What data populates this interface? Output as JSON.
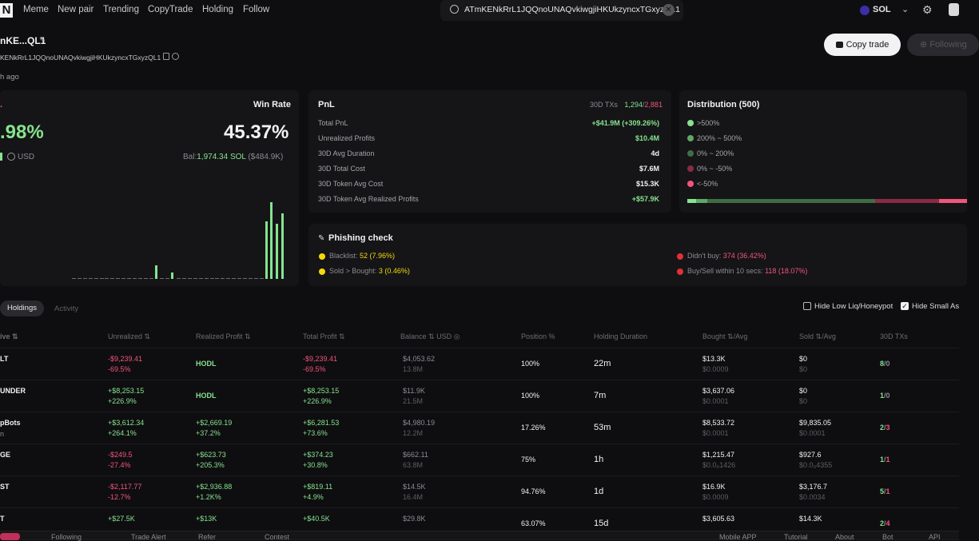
{
  "nav": {
    "logo": "N",
    "items": [
      "Meme",
      "New pair",
      "Trending",
      "CopyTrade",
      "Holding",
      "Follow"
    ],
    "search_value": "ATmKENkRrL1JQQnoUNAQvkiwgjiHKUkzyncxTGxyzQL1",
    "chain": "SOL"
  },
  "wallet": {
    "name": "nKE...QL1",
    "address": "KENkRrL1JQQnoUNAQvkiwgjiHKUkzyncxTGxyzQL1",
    "ago": "h ago",
    "copy_trade_label": "Copy trade",
    "following_label": "Following"
  },
  "summary": {
    "title_stub": ".",
    "win_rate_label": "Win Rate",
    "pnl_pct": ".98%",
    "win_rate": "45.37%",
    "usd_label": "USD",
    "balance": "Bal:1,974.34 SOL ($484.9K)",
    "bal_prefix": "Bal:",
    "bal_sol": "1,974.34 SOL",
    "bal_usd": " ($484.9K)",
    "bar_levels": [
      0,
      0,
      0,
      0,
      0,
      0,
      0,
      0,
      0,
      0,
      0,
      0,
      0,
      0,
      0,
      0.18,
      0,
      0,
      0.08,
      0,
      0,
      0,
      0,
      0,
      0,
      0,
      0,
      0,
      0,
      0,
      0,
      0,
      0,
      0,
      0,
      0.75,
      1.0,
      0.72,
      0.85
    ]
  },
  "pnl": {
    "title": "PnL",
    "txs_label": "30D TXs",
    "txs_buy": "1,294",
    "txs_sell": "2,881",
    "rows": [
      {
        "label": "Total PnL",
        "value": "+$41.9M (+309.26%)",
        "color": "green"
      },
      {
        "label": "Unrealized Profits",
        "value": "$10.4M",
        "color": "green"
      },
      {
        "label": "30D Avg Duration",
        "value": "4d",
        "color": "white"
      },
      {
        "label": "30D Total Cost",
        "value": "$7.6M",
        "color": "white"
      },
      {
        "label": "30D Token Avg Cost",
        "value": "$15.3K",
        "color": "white"
      },
      {
        "label": "30D Token Avg Realized Profits",
        "value": "+$57.9K",
        "color": "green"
      }
    ]
  },
  "distribution": {
    "title": "Distribution (500)",
    "items": [
      {
        "label": ">500%",
        "color": "#86e38f"
      },
      {
        "label": "200% ~ 500%",
        "color": "#5fa866"
      },
      {
        "label": "0% ~ 200%",
        "color": "#3f6e45"
      },
      {
        "label": "0% ~ -50%",
        "color": "#8a2a44"
      },
      {
        "label": "<-50%",
        "color": "#f2557a"
      }
    ],
    "bar_segments": [
      {
        "color": "#86e38f",
        "fraction": 0.03
      },
      {
        "color": "#5fa866",
        "fraction": 0.04
      },
      {
        "color": "#3f6e45",
        "fraction": 0.6
      },
      {
        "color": "#8a2a44",
        "fraction": 0.23
      },
      {
        "color": "#f2557a",
        "fraction": 0.1
      }
    ]
  },
  "phishing": {
    "title": "Phishing check",
    "blacklist_label": "Blacklist:",
    "blacklist_value": "52 (7.96%)",
    "sold_label": "Sold > Bought:",
    "sold_value": "3 (0.46%)",
    "didnt_buy_label": "Didn't buy:",
    "didnt_buy_value": "374 (36.42%)",
    "buysell_label": "Buy/Sell within 10 secs:",
    "buysell_value": "118 (18.07%)"
  },
  "tabs": {
    "holdings": "Holdings",
    "activity": "Activity",
    "hide_low_liq": "Hide Low Liq/Honeypot",
    "hide_small": "Hide Small As"
  },
  "table": {
    "headers": {
      "token": "ive",
      "unrealized": "Unrealized",
      "realized": "Realized Profit",
      "total": "Total Profit",
      "balance": "Balance",
      "usd": "USD",
      "position": "Position %",
      "duration": "Holding Duration",
      "bought": "Bought",
      "bought_avg": "/Avg",
      "sold": "Sold",
      "sold_avg": "/Avg",
      "txs": "30D TXs"
    },
    "rows": [
      {
        "token": "LT",
        "sub": "",
        "unreal": "-$9,239.41",
        "unreal_pct": "-69.5%",
        "uc": "red",
        "realized": "HODL",
        "realized_pct": "",
        "rc": "green",
        "total": "-$9,239.41",
        "total_pct": "-69.5%",
        "tc": "red",
        "bal": "$4,053.62",
        "bal_sub": "13.8M",
        "pos": "100%",
        "dur": "22m",
        "bought": "$13.3K",
        "bought_avg": "$0.0009",
        "sold": "$0",
        "sold_avg": "$0",
        "tx_buy": "8",
        "tx_sell": "0"
      },
      {
        "token": "UNDER",
        "sub": "",
        "unreal": "+$8,253.15",
        "unreal_pct": "+226.9%",
        "uc": "green",
        "realized": "HODL",
        "realized_pct": "",
        "rc": "green",
        "total": "+$8,253.15",
        "total_pct": "+226.9%",
        "tc": "green",
        "bal": "$11.9K",
        "bal_sub": "21.5M",
        "pos": "100%",
        "dur": "7m",
        "bought": "$3,637.06",
        "bought_avg": "$0.0001",
        "sold": "$0",
        "sold_avg": "$0",
        "tx_buy": "1",
        "tx_sell": "0"
      },
      {
        "token": "pBots",
        "sub": "n",
        "unreal": "+$3,612.34",
        "unreal_pct": "+264.1%",
        "uc": "green",
        "realized": "+$2,669.19",
        "realized_pct": "+37.2%",
        "rc": "green",
        "total": "+$6,281.53",
        "total_pct": "+73.6%",
        "tc": "green",
        "bal": "$4,980.19",
        "bal_sub": "12.2M",
        "pos": "17.26%",
        "dur": "53m",
        "bought": "$8,533.72",
        "bought_avg": "$0.0001",
        "sold": "$9,835.05",
        "sold_avg": "$0.0001",
        "tx_buy": "2",
        "tx_sell": "3"
      },
      {
        "token": "GE",
        "sub": "",
        "unreal": "-$249.5",
        "unreal_pct": "-27.4%",
        "uc": "red",
        "realized": "+$623.73",
        "realized_pct": "+205.3%",
        "rc": "green",
        "total": "+$374.23",
        "total_pct": "+30.8%",
        "tc": "green",
        "bal": "$662.11",
        "bal_sub": "63.8M",
        "pos": "75%",
        "dur": "1h",
        "bought": "$1,215.47",
        "bought_avg": "$0.0₀1426",
        "sold": "$927.6",
        "sold_avg": "$0.0₀4355",
        "tx_buy": "1",
        "tx_sell": "1"
      },
      {
        "token": "ST",
        "sub": "",
        "unreal": "-$2,117.77",
        "unreal_pct": "-12.7%",
        "uc": "red",
        "realized": "+$2,936.88",
        "realized_pct": "+1.2K%",
        "rc": "green",
        "total": "+$819.11",
        "total_pct": "+4.9%",
        "tc": "green",
        "bal": "$14.5K",
        "bal_sub": "16.4M",
        "pos": "94.76%",
        "dur": "1d",
        "bought": "$16.9K",
        "bought_avg": "$0.0009",
        "sold": "$3,176.7",
        "sold_avg": "$0.0034",
        "tx_buy": "5",
        "tx_sell": "1"
      },
      {
        "token": "T",
        "sub": "",
        "unreal": "+$27.5K",
        "unreal_pct": "",
        "uc": "green",
        "realized": "+$13K",
        "realized_pct": "",
        "rc": "green",
        "total": "+$40.5K",
        "total_pct": "",
        "tc": "green",
        "bal": "$29.8K",
        "bal_sub": "",
        "pos": "63.07%",
        "dur": "15d",
        "bought": "$3,605.63",
        "bought_avg": "",
        "sold": "$14.3K",
        "sold_avg": "",
        "tx_buy": "2",
        "tx_sell": "4"
      }
    ]
  },
  "bottom": {
    "following": "Following",
    "trade_alert": "Trade Alert",
    "refer": "Refer",
    "contest": "Contest",
    "mobile": "Mobile APP",
    "tutorial": "Tutorial",
    "about": "About",
    "bot": "Bot",
    "api": "API"
  }
}
